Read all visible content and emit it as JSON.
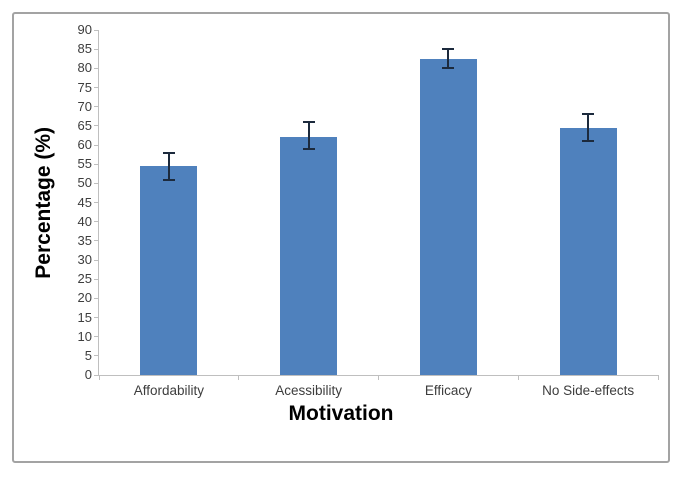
{
  "figure": {
    "background_color": "#ffffff",
    "frame_border_color": "#a3a3a3"
  },
  "chart_data": {
    "type": "bar",
    "title": "",
    "xlabel": "Motivation",
    "ylabel": "Percentage (%)",
    "categories": [
      "Affordability",
      "Acessibility",
      "Efficacy",
      "No Side-effects"
    ],
    "values": [
      54.5,
      62,
      82.5,
      64.5
    ],
    "error_low": [
      51,
      59,
      80,
      61
    ],
    "error_high": [
      58,
      66,
      85,
      68
    ],
    "ylim": [
      0,
      90
    ],
    "ytick_step": 5,
    "ytick_labels": [
      "0",
      "5",
      "10",
      "15",
      "20",
      "25",
      "30",
      "35",
      "40",
      "45",
      "50",
      "55",
      "60",
      "65",
      "70",
      "75",
      "80",
      "85",
      "90"
    ],
    "grid": false,
    "legend": false,
    "bar_color": "#4f81bd",
    "error_bar_color": "#1c2a3d",
    "axis_line_color": "#bfbfbf",
    "tick_label_color": "#3d3d3d"
  }
}
